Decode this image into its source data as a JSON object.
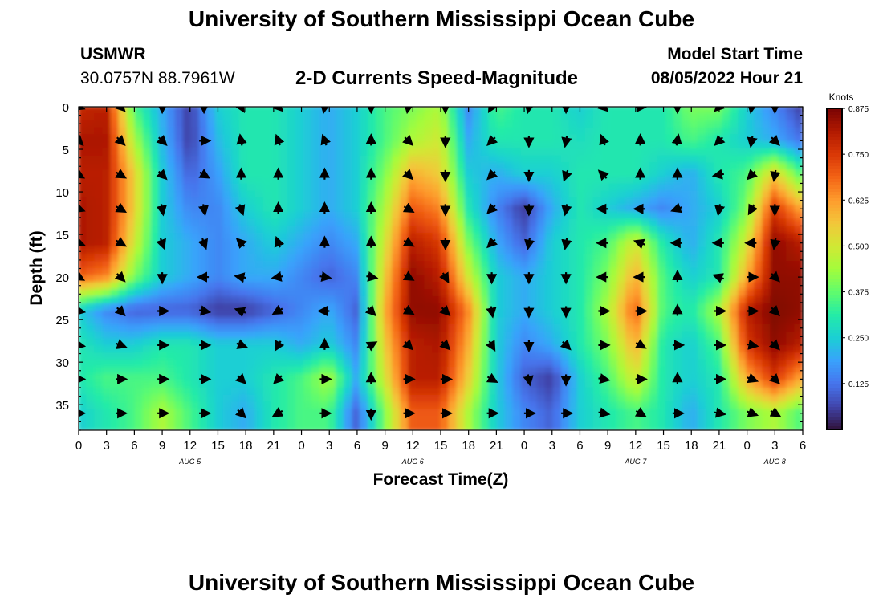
{
  "page": {
    "title": "University of Southern Mississippi Ocean Cube",
    "footer_title": "University of Southern Mississippi Ocean Cube",
    "station": "USMWR",
    "coords": "30.0757N  88.7961W",
    "plot_title": "2-D Currents Speed-Magnitude",
    "start_label": "Model Start Time",
    "start_value": "08/05/2022 Hour 21"
  },
  "chart_data": {
    "type": "heatmap",
    "title": "2-D Currents Speed-Magnitude",
    "xlabel": "Forecast Time(Z)",
    "ylabel": "Depth (ft)",
    "colorbar_label": "Knots",
    "x_range_hours": [
      0,
      78
    ],
    "y_range_ft": [
      0,
      38
    ],
    "x_tick_labels": [
      "0",
      "3",
      "6",
      "9",
      "12",
      "15",
      "18",
      "21",
      "0",
      "3",
      "6",
      "9",
      "12",
      "15",
      "18",
      "21",
      "0",
      "3",
      "6",
      "9",
      "12",
      "15",
      "18",
      "21",
      "0",
      "3",
      "6"
    ],
    "y_ticks": [
      0,
      5,
      10,
      15,
      20,
      25,
      30,
      35
    ],
    "day_labels": [
      {
        "text": "AUG 5",
        "hour": 12
      },
      {
        "text": "AUG 6",
        "hour": 36
      },
      {
        "text": "AUG 7",
        "hour": 60
      },
      {
        "text": "AUG 8",
        "hour": 75
      }
    ],
    "colorbar_ticks": [
      "0.875",
      "0.750",
      "0.625",
      "0.500",
      "0.375",
      "0.250",
      "0.125"
    ],
    "colorbar_tick_values": [
      0.875,
      0.75,
      0.625,
      0.5,
      0.375,
      0.25,
      0.125
    ],
    "value_range": [
      0.0,
      0.875
    ],
    "colorscale": [
      "#30123b",
      "#4145ab",
      "#4675ed",
      "#39a2fc",
      "#1bcfd4",
      "#24eca6",
      "#61fc6c",
      "#a4fc3b",
      "#d1e834",
      "#f3c63a",
      "#fe9b2d",
      "#f36315",
      "#d93806",
      "#b11901",
      "#7a0403"
    ],
    "speed_samples": {
      "hours": [
        0,
        3,
        6,
        9,
        12,
        15,
        18,
        21,
        24,
        27,
        30,
        33,
        36,
        39,
        42,
        45,
        48,
        51,
        54,
        57,
        60,
        63,
        66,
        69,
        72,
        75,
        78
      ],
      "depths": [
        0,
        4,
        8,
        12,
        16,
        20,
        24,
        28,
        32,
        36
      ],
      "values": [
        [
          0.78,
          0.8,
          0.35,
          0.2,
          0.05,
          0.25,
          0.3,
          0.3,
          0.25,
          0.2,
          0.25,
          0.35,
          0.4,
          0.45,
          0.15,
          0.35,
          0.3,
          0.3,
          0.25,
          0.3,
          0.3,
          0.3,
          0.4,
          0.4,
          0.25,
          0.15,
          0.05
        ],
        [
          0.82,
          0.82,
          0.45,
          0.22,
          0.05,
          0.22,
          0.3,
          0.3,
          0.25,
          0.2,
          0.25,
          0.35,
          0.45,
          0.5,
          0.2,
          0.3,
          0.3,
          0.3,
          0.28,
          0.3,
          0.3,
          0.3,
          0.35,
          0.3,
          0.25,
          0.2,
          0.12
        ],
        [
          0.8,
          0.8,
          0.55,
          0.25,
          0.1,
          0.18,
          0.3,
          0.3,
          0.25,
          0.2,
          0.25,
          0.4,
          0.6,
          0.55,
          0.25,
          0.2,
          0.25,
          0.25,
          0.3,
          0.3,
          0.3,
          0.25,
          0.2,
          0.3,
          0.35,
          0.55,
          0.35
        ],
        [
          0.82,
          0.8,
          0.55,
          0.25,
          0.15,
          0.15,
          0.25,
          0.3,
          0.25,
          0.2,
          0.25,
          0.45,
          0.7,
          0.65,
          0.3,
          0.15,
          0.05,
          0.2,
          0.3,
          0.25,
          0.2,
          0.15,
          0.2,
          0.25,
          0.4,
          0.75,
          0.6
        ],
        [
          0.82,
          0.8,
          0.5,
          0.25,
          0.2,
          0.15,
          0.2,
          0.25,
          0.2,
          0.15,
          0.2,
          0.5,
          0.8,
          0.75,
          0.4,
          0.2,
          0.1,
          0.25,
          0.3,
          0.35,
          0.5,
          0.3,
          0.2,
          0.3,
          0.5,
          0.85,
          0.8
        ],
        [
          0.7,
          0.65,
          0.4,
          0.25,
          0.2,
          0.15,
          0.2,
          0.2,
          0.15,
          0.1,
          0.15,
          0.55,
          0.85,
          0.8,
          0.5,
          0.25,
          0.2,
          0.25,
          0.3,
          0.4,
          0.6,
          0.35,
          0.25,
          0.3,
          0.6,
          0.85,
          0.85
        ],
        [
          0.25,
          0.15,
          0.1,
          0.1,
          0.1,
          0.05,
          0.05,
          0.1,
          0.15,
          0.2,
          0.1,
          0.6,
          0.85,
          0.85,
          0.65,
          0.25,
          0.2,
          0.25,
          0.3,
          0.45,
          0.7,
          0.35,
          0.3,
          0.45,
          0.8,
          0.87,
          0.85
        ],
        [
          0.3,
          0.25,
          0.25,
          0.3,
          0.3,
          0.25,
          0.25,
          0.25,
          0.2,
          0.25,
          0.15,
          0.55,
          0.8,
          0.82,
          0.6,
          0.25,
          0.15,
          0.2,
          0.3,
          0.4,
          0.6,
          0.3,
          0.25,
          0.35,
          0.75,
          0.85,
          0.8
        ],
        [
          0.3,
          0.35,
          0.35,
          0.35,
          0.3,
          0.25,
          0.25,
          0.3,
          0.35,
          0.45,
          0.2,
          0.5,
          0.8,
          0.8,
          0.55,
          0.25,
          0.1,
          0.05,
          0.25,
          0.35,
          0.5,
          0.3,
          0.25,
          0.3,
          0.6,
          0.75,
          0.6
        ],
        [
          0.25,
          0.3,
          0.35,
          0.45,
          0.35,
          0.25,
          0.2,
          0.3,
          0.35,
          0.35,
          0.1,
          0.4,
          0.7,
          0.7,
          0.45,
          0.25,
          0.15,
          0.1,
          0.25,
          0.3,
          0.35,
          0.3,
          0.2,
          0.3,
          0.4,
          0.45,
          0.35
        ]
      ]
    },
    "arrows": {
      "hours": [
        0,
        4.5,
        9,
        13.5,
        17.5,
        21.5,
        26.5,
        31.5,
        35.5,
        39.5,
        44.5,
        48.5,
        52.5,
        56.5,
        60.5,
        64.5,
        69,
        72.5,
        75
      ],
      "depths": [
        0,
        4,
        8,
        12,
        16,
        20,
        24,
        28,
        32,
        36
      ],
      "angles_deg": [
        [
          20,
          45,
          90,
          90,
          60,
          45,
          100,
          90,
          100,
          90,
          120,
          100,
          90,
          45,
          0,
          90,
          135,
          100,
          90
        ],
        [
          45,
          45,
          45,
          0,
          260,
          250,
          250,
          270,
          45,
          90,
          135,
          90,
          100,
          250,
          270,
          280,
          135,
          100,
          45
        ],
        [
          30,
          30,
          45,
          30,
          270,
          270,
          270,
          270,
          45,
          90,
          135,
          90,
          110,
          225,
          270,
          270,
          170,
          135,
          100
        ],
        [
          20,
          30,
          80,
          80,
          70,
          270,
          270,
          270,
          30,
          90,
          135,
          90,
          100,
          180,
          180,
          160,
          100,
          120,
          90
        ],
        [
          20,
          30,
          70,
          70,
          225,
          250,
          270,
          270,
          30,
          90,
          135,
          100,
          100,
          180,
          200,
          180,
          180,
          180,
          100
        ],
        [
          30,
          45,
          90,
          180,
          190,
          170,
          10,
          10,
          30,
          60,
          90,
          90,
          90,
          180,
          180,
          270,
          200,
          0,
          45
        ],
        [
          10,
          45,
          0,
          10,
          200,
          150,
          180,
          45,
          30,
          45,
          80,
          90,
          90,
          0,
          0,
          270,
          0,
          0,
          45
        ],
        [
          10,
          20,
          0,
          0,
          20,
          120,
          270,
          330,
          45,
          45,
          60,
          90,
          45,
          0,
          30,
          0,
          0,
          10,
          45
        ],
        [
          0,
          0,
          0,
          0,
          45,
          135,
          0,
          270,
          0,
          0,
          30,
          80,
          90,
          10,
          0,
          270,
          0,
          20,
          45
        ],
        [
          0,
          0,
          0,
          0,
          45,
          150,
          0,
          90,
          0,
          0,
          0,
          0,
          0,
          10,
          30,
          0,
          10,
          20,
          30
        ]
      ]
    }
  }
}
